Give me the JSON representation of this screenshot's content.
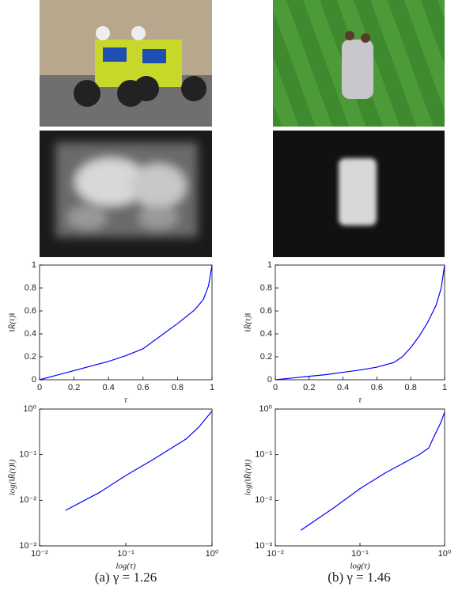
{
  "chart_data": [
    {
      "type": "line",
      "xlabel": "τ",
      "ylabel": "‖R̈(τ)‖",
      "xlim": [
        0,
        1
      ],
      "ylim": [
        0,
        1
      ],
      "xticks": [
        0,
        0.2,
        0.4,
        0.6,
        0.8,
        1
      ],
      "yticks": [
        0,
        0.2,
        0.4,
        0.6,
        0.8,
        1
      ],
      "x": [
        0,
        0.1,
        0.2,
        0.3,
        0.4,
        0.5,
        0.6,
        0.7,
        0.8,
        0.9,
        0.95,
        0.98,
        1
      ],
      "series": [
        {
          "color": "#0000ff",
          "values": [
            0,
            0.04,
            0.08,
            0.12,
            0.16,
            0.21,
            0.27,
            0.38,
            0.49,
            0.61,
            0.7,
            0.82,
            1
          ]
        }
      ]
    },
    {
      "type": "line",
      "xlabel": "τ",
      "ylabel": "‖R̈(τ)‖",
      "xlim": [
        0,
        1
      ],
      "ylim": [
        0,
        1
      ],
      "xticks": [
        0,
        0.2,
        0.4,
        0.6,
        0.8,
        1
      ],
      "yticks": [
        0,
        0.2,
        0.4,
        0.6,
        0.8,
        1
      ],
      "x": [
        0,
        0.1,
        0.2,
        0.3,
        0.4,
        0.5,
        0.6,
        0.7,
        0.75,
        0.8,
        0.85,
        0.9,
        0.95,
        0.98,
        1
      ],
      "series": [
        {
          "color": "#0000ff",
          "values": [
            0,
            0.015,
            0.03,
            0.045,
            0.065,
            0.085,
            0.11,
            0.15,
            0.2,
            0.28,
            0.38,
            0.5,
            0.65,
            0.8,
            1
          ]
        }
      ]
    },
    {
      "type": "line",
      "xlabel": "log(τ)",
      "ylabel": "log(‖R̈(τ)‖)",
      "xscale": "log",
      "yscale": "log",
      "xlim": [
        0.01,
        1
      ],
      "ylim": [
        0.001,
        1
      ],
      "xticks": [
        {
          "value": 0.01,
          "label": "10⁻²"
        },
        {
          "value": 0.1,
          "label": "10⁻¹"
        },
        {
          "value": 1,
          "label": "10⁰"
        }
      ],
      "yticks": [
        {
          "value": 0.001,
          "label": "10⁻³"
        },
        {
          "value": 0.01,
          "label": "10⁻²"
        },
        {
          "value": 0.1,
          "label": "10⁻¹"
        },
        {
          "value": 1,
          "label": "10⁰"
        }
      ],
      "x": [
        0.02,
        0.05,
        0.1,
        0.2,
        0.5,
        0.7,
        1
      ],
      "series": [
        {
          "color": "#0000ff",
          "values": [
            0.006,
            0.015,
            0.035,
            0.075,
            0.22,
            0.4,
            0.9
          ]
        }
      ]
    },
    {
      "type": "line",
      "xlabel": "log(τ)",
      "ylabel": "log(‖R̈(τ)‖)",
      "xscale": "log",
      "yscale": "log",
      "xlim": [
        0.01,
        1
      ],
      "ylim": [
        0.001,
        1
      ],
      "xticks": [
        {
          "value": 0.01,
          "label": "10⁻²"
        },
        {
          "value": 0.1,
          "label": "10⁻¹"
        },
        {
          "value": 1,
          "label": "10⁰"
        }
      ],
      "yticks": [
        {
          "value": 0.001,
          "label": "10⁻³"
        },
        {
          "value": 0.01,
          "label": "10⁻²"
        },
        {
          "value": 0.1,
          "label": "10⁻¹"
        },
        {
          "value": 1,
          "label": "10⁰"
        }
      ],
      "x": [
        0.02,
        0.05,
        0.1,
        0.2,
        0.5,
        0.65,
        0.75,
        0.9,
        1
      ],
      "series": [
        {
          "color": "#0000ff",
          "values": [
            0.0022,
            0.007,
            0.018,
            0.04,
            0.1,
            0.14,
            0.25,
            0.5,
            0.85
          ]
        }
      ]
    }
  ],
  "captions": [
    "(a)  γ = 1.26",
    "(b)  γ = 1.46"
  ]
}
